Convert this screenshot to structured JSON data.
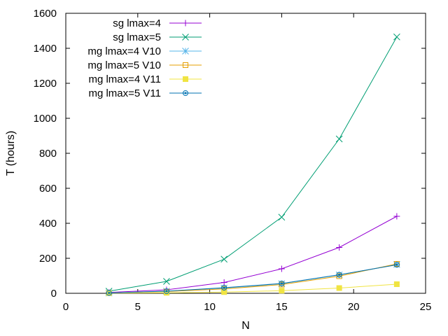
{
  "chart_data": {
    "type": "line",
    "title": "",
    "xlabel": "N",
    "ylabel": "T (hours)",
    "xlim": [
      0,
      25
    ],
    "ylim": [
      0,
      1600
    ],
    "xticks": [
      0,
      5,
      10,
      15,
      20,
      25
    ],
    "yticks": [
      0,
      200,
      400,
      600,
      800,
      1000,
      1200,
      1400,
      1600
    ],
    "grid": false,
    "legend_position": "top-left",
    "x": [
      3,
      7,
      11,
      15,
      19,
      23
    ],
    "series": [
      {
        "name": "sg lmax=4",
        "color": "#9400d3",
        "marker": "plus",
        "values": [
          5,
          20,
          62,
          140,
          262,
          440
        ]
      },
      {
        "name": "sg lmax=5",
        "color": "#009e73",
        "marker": "cross",
        "values": [
          12,
          68,
          195,
          435,
          882,
          1465
        ]
      },
      {
        "name": "mg lmax=4 V10",
        "color": "#56b4e9",
        "marker": "star",
        "values": [
          2,
          12,
          30,
          55,
          105,
          165
        ]
      },
      {
        "name": "mg lmax=5 V10",
        "color": "#e69f00",
        "marker": "open-square",
        "values": [
          2,
          10,
          25,
          50,
          98,
          168
        ]
      },
      {
        "name": "mg lmax=4 V11",
        "color": "#f0e442",
        "marker": "filled-square",
        "values": [
          1,
          3,
          7,
          15,
          30,
          52
        ]
      },
      {
        "name": "mg lmax=5 V11",
        "color": "#0072b2",
        "marker": "dotted-circle",
        "values": [
          2,
          12,
          32,
          56,
          106,
          163
        ]
      }
    ]
  }
}
